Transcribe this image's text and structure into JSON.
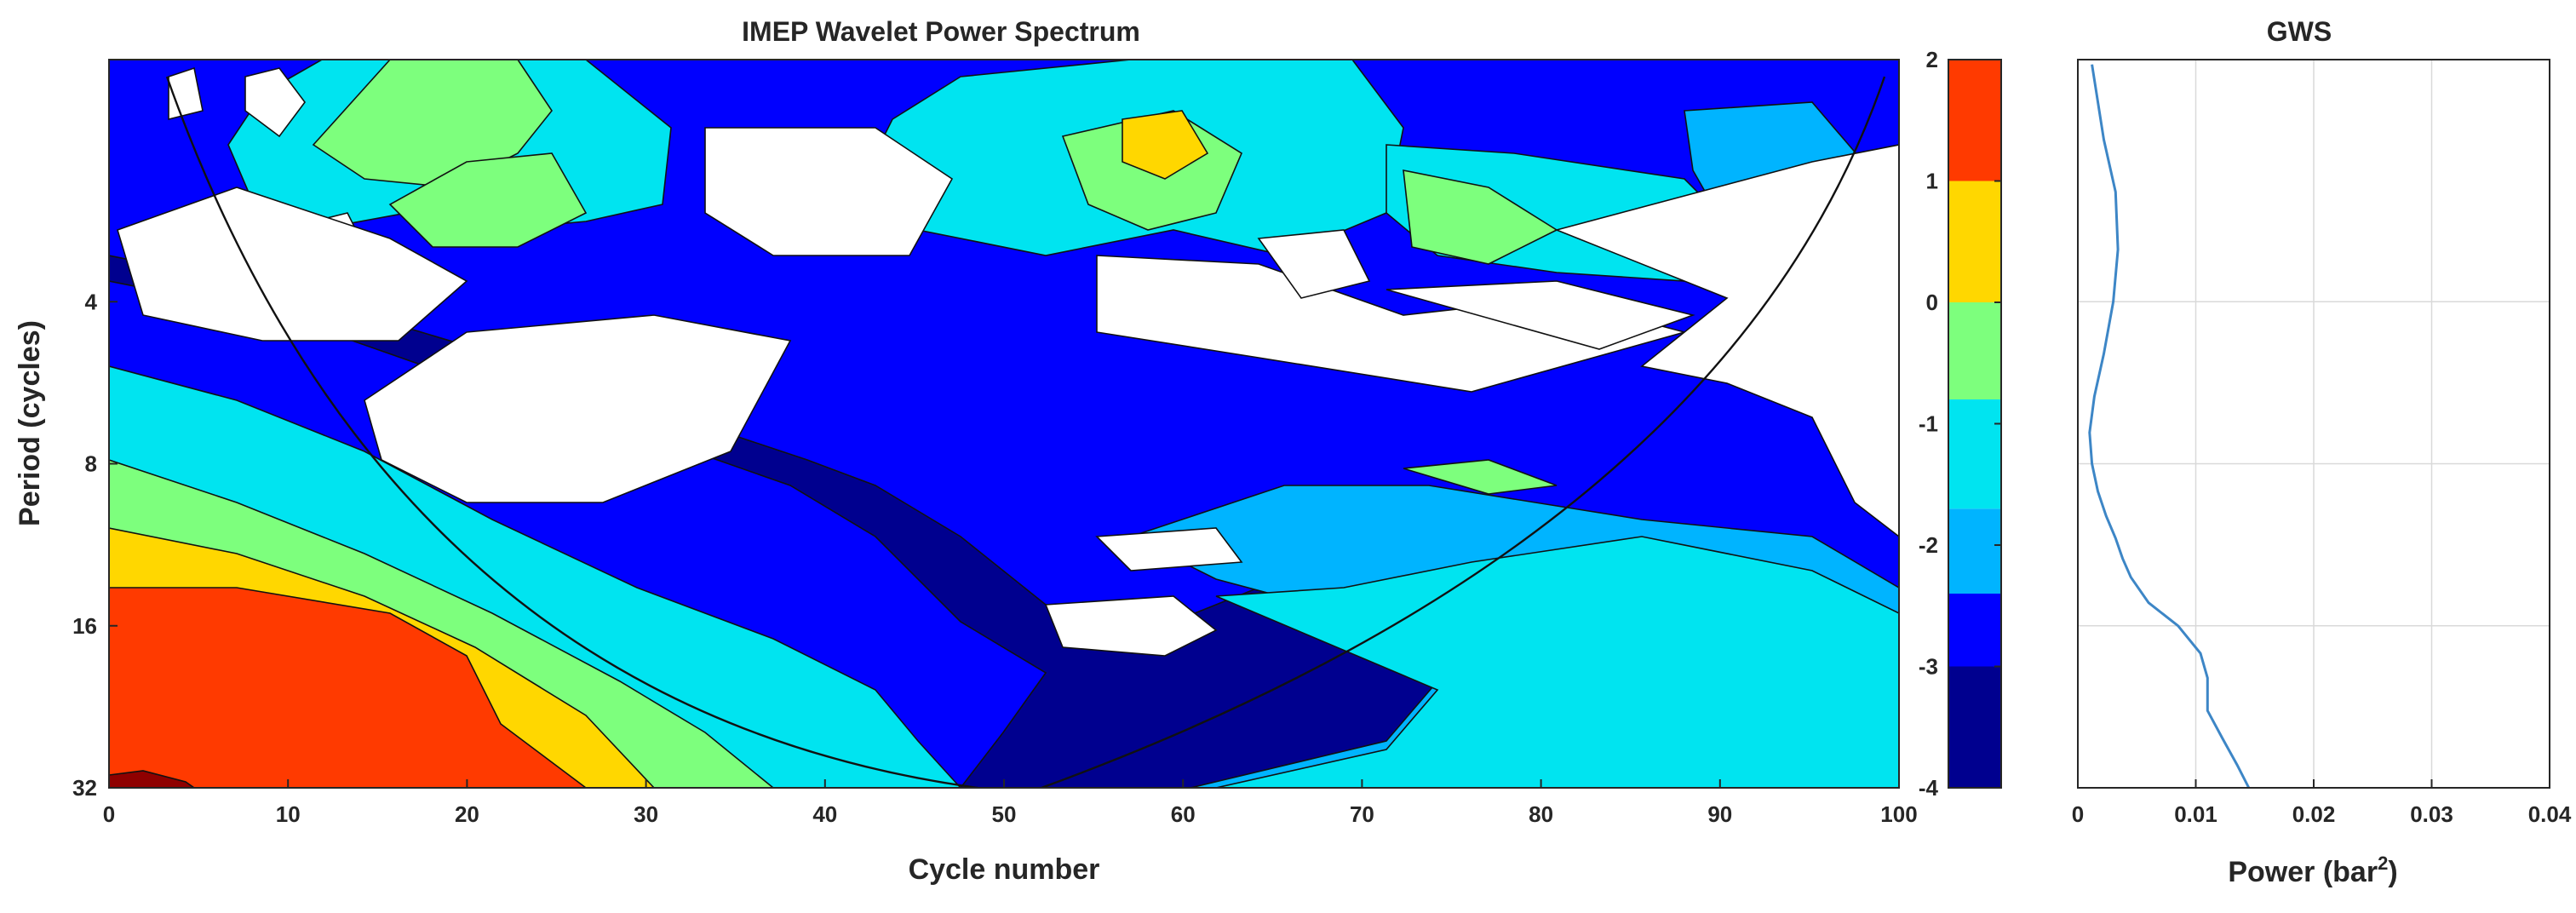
{
  "colors": {
    "scale": [
      "#00008f",
      "#0000ff",
      "#00b4ff",
      "#00e4f0",
      "#7dff7d",
      "#ffd700",
      "#ff3a00",
      "#8f0000"
    ],
    "gws_line": "#3d86c6",
    "white_region": "#ffffff"
  },
  "chart_data": [
    {
      "type": "heatmap",
      "subtype": "filled-contour",
      "title": "IMEP Wavelet Power Spectrum",
      "xlabel": "Cycle number",
      "ylabel": "Period (cycles)",
      "xlim": [
        0,
        100
      ],
      "ylim": [
        1.42,
        32
      ],
      "y_scale": "log2",
      "y_reversed": true,
      "x_ticks": [
        0,
        10,
        20,
        30,
        40,
        50,
        60,
        70,
        80,
        90,
        100
      ],
      "y_ticks": [
        4,
        8,
        16,
        32
      ],
      "contour_levels": [
        -4,
        -3,
        -2.4,
        -1.7,
        -0.8,
        0,
        1,
        2
      ],
      "features": [
        {
          "kind": "peak",
          "x": 55,
          "period": 2.3,
          "level": 0.5
        },
        {
          "kind": "broad-high",
          "x_range": [
            0,
            30
          ],
          "period_range": [
            16,
            32
          ],
          "level": 1.3
        }
      ],
      "cone_of_influence": true
    },
    {
      "type": "colorbar",
      "range": [
        -4,
        2
      ],
      "ticks": [
        2,
        1,
        0,
        -1,
        -2,
        -3,
        -4
      ]
    },
    {
      "type": "line",
      "title": "GWS",
      "xlabel": "Power (bar",
      "xlabel_sup": "2",
      "xlabel_end": ")",
      "xlim": [
        0,
        0.04
      ],
      "x_ticks": [
        "0",
        "0.01",
        "0.02",
        "0.03",
        "0.04"
      ],
      "y_scale": "log2",
      "y_reversed": true,
      "grid": true,
      "series": [
        {
          "power": [
            0.0012,
            0.0022,
            0.0032,
            0.0034,
            0.003,
            0.0022,
            0.0014,
            0.001,
            0.0012,
            0.0017,
            0.0024,
            0.0032,
            0.0038,
            0.0045,
            0.006,
            0.0085,
            0.0104,
            0.011,
            0.011,
            0.0123,
            0.0135,
            0.0145
          ],
          "period": [
            1.45,
            2.0,
            2.5,
            3.2,
            4.0,
            5.0,
            6.0,
            7.0,
            8.0,
            9.0,
            10.0,
            11.0,
            12.0,
            13.0,
            14.5,
            16.0,
            18.0,
            20.0,
            23.0,
            26.0,
            29.0,
            32.0
          ]
        }
      ]
    }
  ]
}
